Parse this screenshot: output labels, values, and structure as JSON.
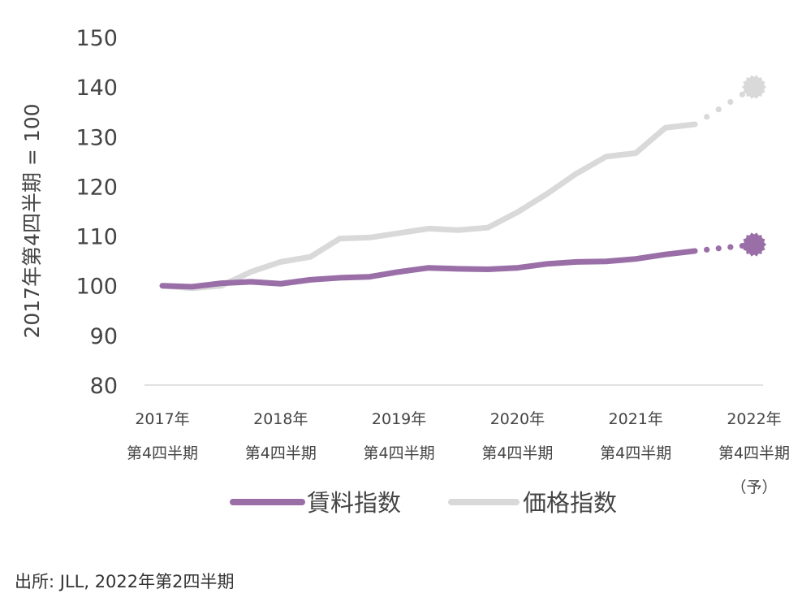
{
  "chart_data": {
    "type": "line",
    "ylabel": "2017年第4四半期 = 100",
    "ylim": [
      80,
      150
    ],
    "yticks": [
      "80",
      "90",
      "100",
      "110",
      "120",
      "130",
      "140",
      "150"
    ],
    "x_tick_labels": [
      [
        "2017年",
        "第4四半期"
      ],
      [
        "2018年",
        "第4四半期"
      ],
      [
        "2019年",
        "第4四半期"
      ],
      [
        "2020年",
        "第4四半期"
      ],
      [
        "2021年",
        "第4四半期"
      ],
      [
        "2022年",
        "第4四半期",
        "（予）"
      ]
    ],
    "x_quarter_index_start": 0,
    "series": [
      {
        "name": "賃料指数",
        "color": "#9a6fa8",
        "values": [
          100.0,
          99.8,
          100.5,
          100.8,
          100.4,
          101.2,
          101.6,
          101.8,
          102.8,
          103.6,
          103.4,
          103.3,
          103.6,
          104.4,
          104.8,
          104.9,
          105.4,
          106.3,
          107.0
        ],
        "forecast": {
          "from_index": 18,
          "to_index": 20,
          "value": 108.3
        }
      },
      {
        "name": "価格指数",
        "color": "#d9d9d9",
        "values": [
          100.0,
          99.5,
          100.0,
          102.8,
          104.8,
          105.8,
          109.5,
          109.7,
          110.6,
          111.5,
          111.2,
          111.7,
          114.8,
          118.5,
          122.6,
          126.0,
          126.7,
          131.8,
          132.5
        ],
        "forecast": {
          "from_index": 18,
          "to_index": 20,
          "value": 140.0
        }
      }
    ],
    "grid": false,
    "legend_position": "bottom"
  },
  "source": "出所: JLL, 2022年第2四半期"
}
